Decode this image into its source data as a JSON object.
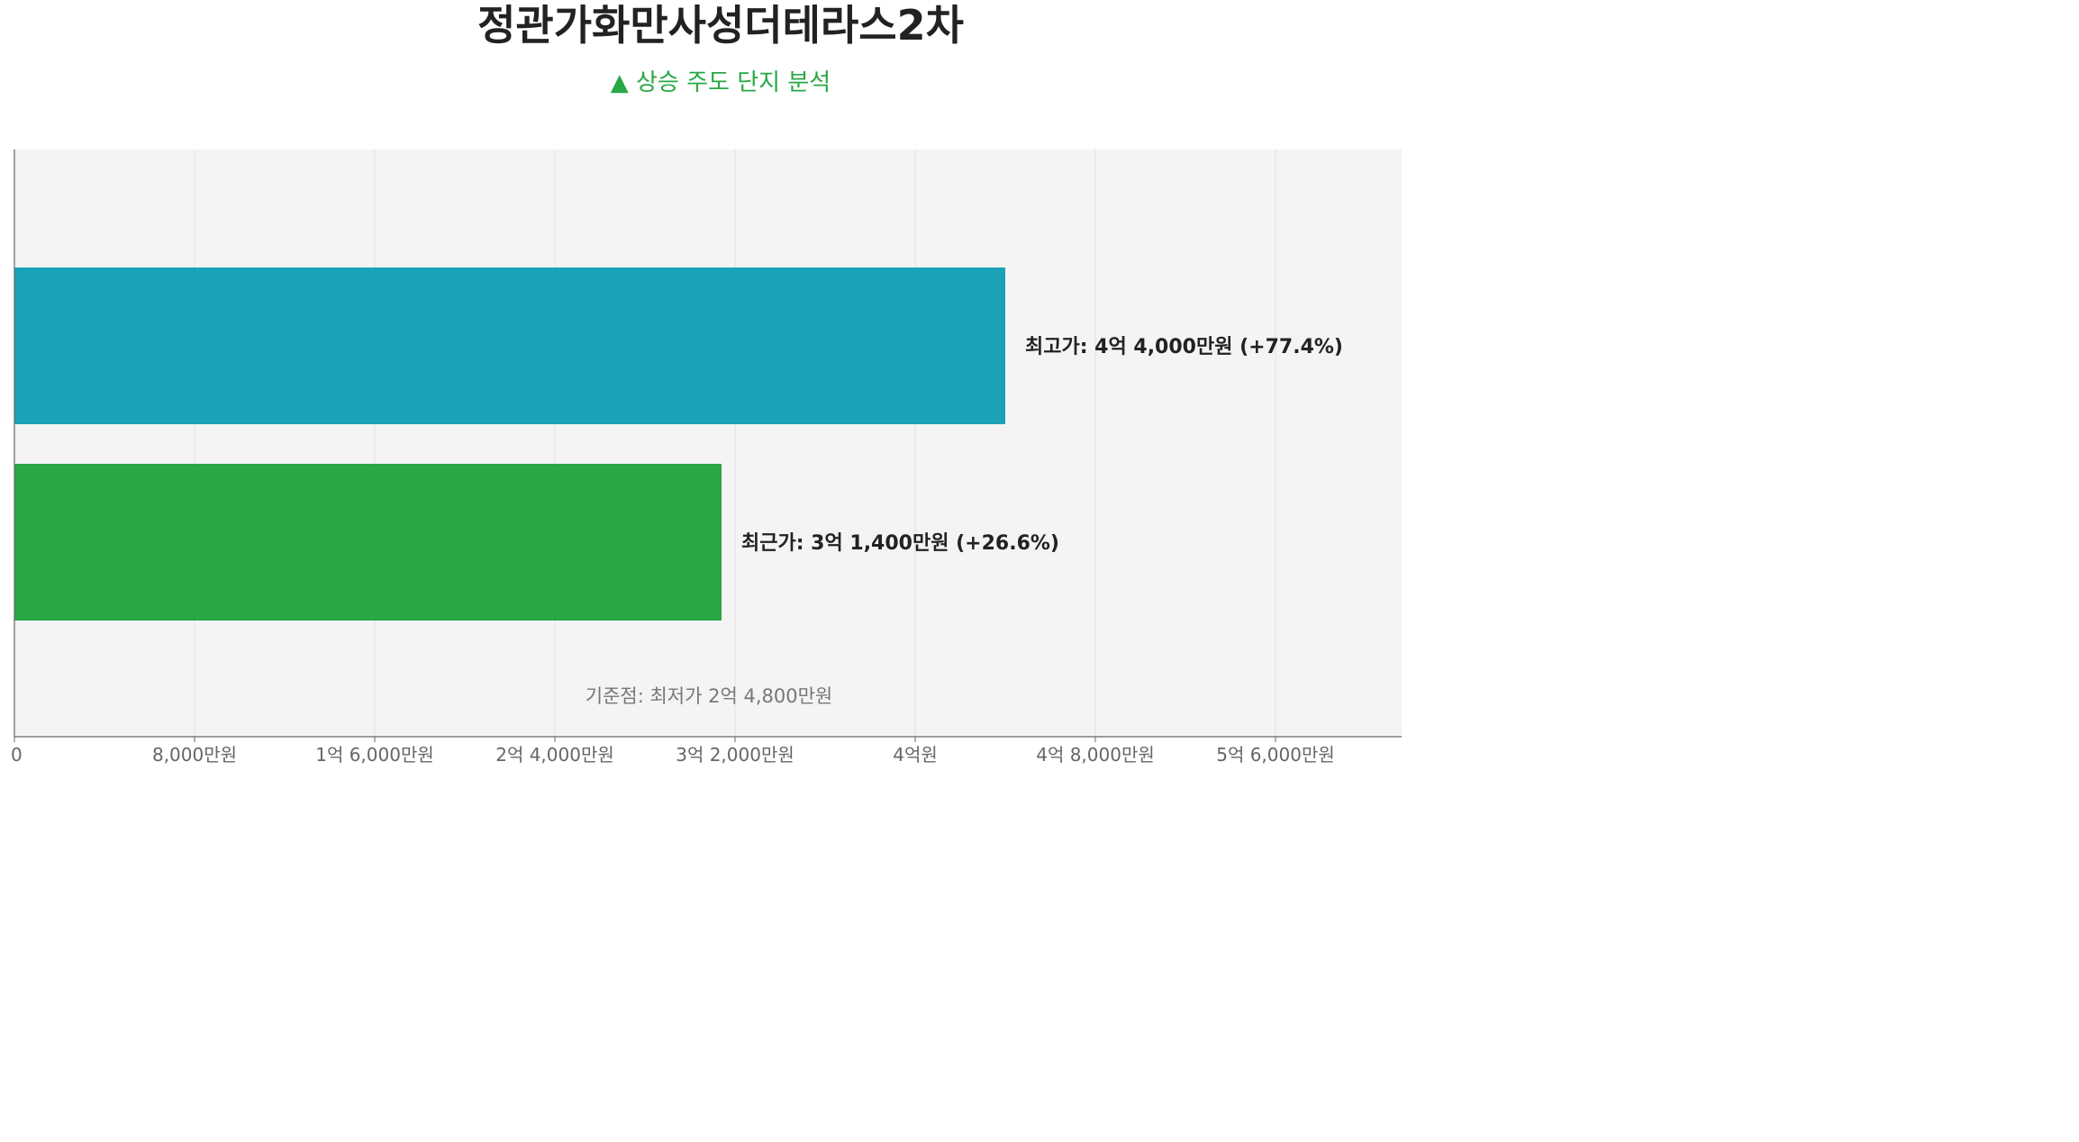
{
  "chart_data": {
    "type": "bar",
    "orientation": "horizontal",
    "title": "정관가화만사성더테라스2차",
    "subtitle": "▲ 상승 주도 단지 분석",
    "categories": [
      "최고가",
      "최근가"
    ],
    "values": [
      44000,
      31400
    ],
    "unit": "만원",
    "bar_labels": [
      "최고가: 4억 4,000만원 (+77.4%)",
      "최근가: 3억 1,400만원 (+26.6%)"
    ],
    "bar_colors": [
      "#19a2b8",
      "#28a745"
    ],
    "annotation": "기준점: 최저가 2억 4,800만원",
    "xlim": [
      0,
      61600
    ],
    "x_ticks": [
      0,
      8000,
      16000,
      24000,
      32000,
      40000,
      48000,
      56000
    ],
    "x_tick_labels": [
      "0",
      "8,000만원",
      "1억 6,000만원",
      "2억 4,000만원",
      "3억 2,000만원",
      "4억원",
      "4억 8,000만원",
      "5억 6,000만원"
    ],
    "grid": true,
    "legend": "none"
  }
}
